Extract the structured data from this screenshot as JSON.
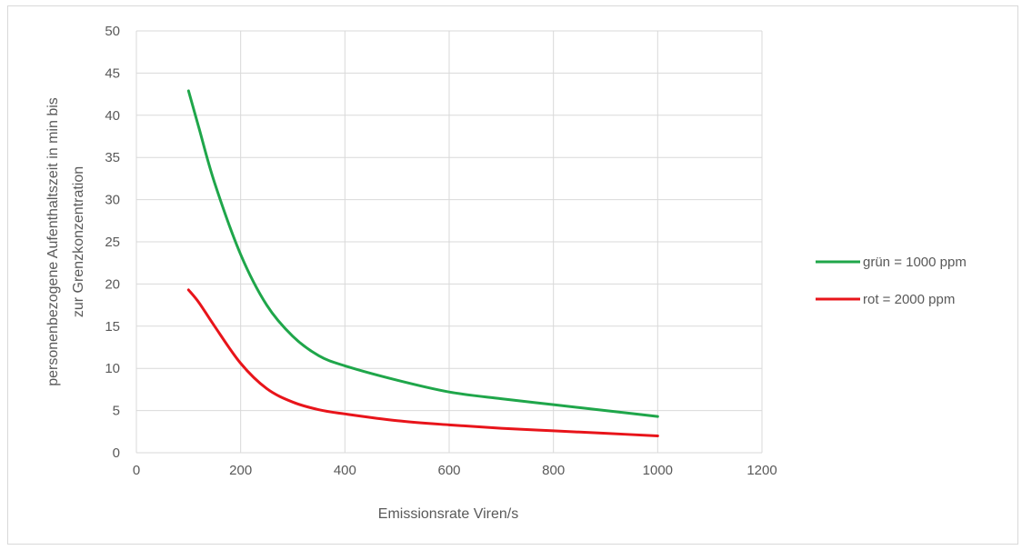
{
  "chart_data": {
    "type": "line",
    "xlabel": "Emissionsrate Viren/s",
    "ylabel_lines": [
      "personenbezogene Aufenthaltszeit in min bis",
      "zur Grenzkonzentration"
    ],
    "xlim": [
      0,
      1200
    ],
    "ylim": [
      0,
      50
    ],
    "x_ticks": [
      0,
      200,
      400,
      600,
      800,
      1000,
      1200
    ],
    "y_ticks": [
      0,
      5,
      10,
      15,
      20,
      25,
      30,
      35,
      40,
      45,
      50
    ],
    "grid": true,
    "legend_position": "right",
    "x": [
      100,
      120,
      150,
      200,
      250,
      300,
      350,
      400,
      500,
      600,
      700,
      800,
      900,
      1000
    ],
    "series": [
      {
        "name": "grün = 1000 ppm",
        "color": "#1fa64a",
        "values": [
          42.9,
          38.5,
          32.0,
          23.5,
          17.5,
          13.8,
          11.5,
          10.3,
          8.6,
          7.2,
          6.4,
          5.7,
          5.0,
          4.3
        ]
      },
      {
        "name": "rot = 2000 ppm",
        "color": "#e8141a",
        "values": [
          19.3,
          17.8,
          15.0,
          10.6,
          7.6,
          6.0,
          5.1,
          4.6,
          3.8,
          3.3,
          2.9,
          2.6,
          2.3,
          2.0
        ]
      }
    ]
  },
  "colors": {
    "grid": "#d9d9d9",
    "text": "#595959"
  }
}
